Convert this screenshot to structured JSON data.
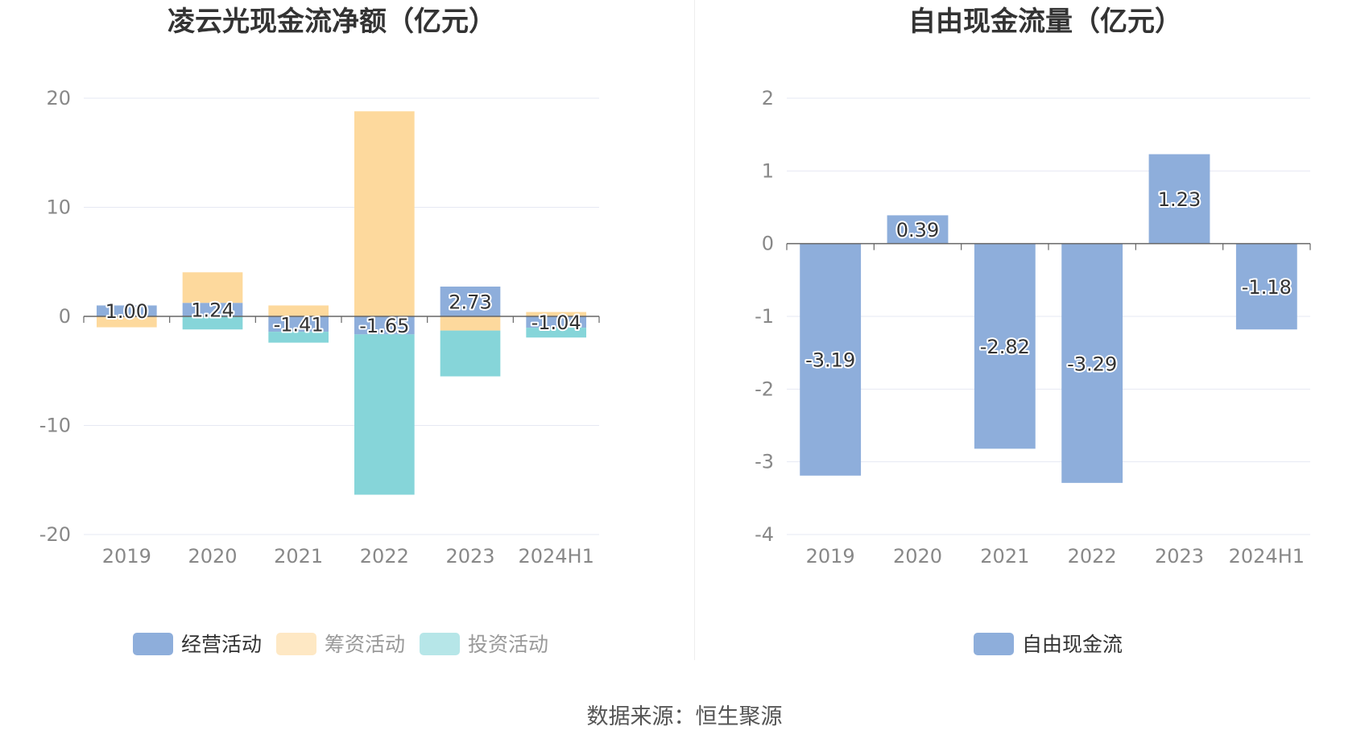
{
  "colors": {
    "operating": "#8eaedb",
    "financing": "#fdd99d",
    "investing": "#86d5d9",
    "free_cash_flow": "#8eaedb",
    "grid": "#e6e8f3",
    "axis_label": "#888888",
    "title": "#333333"
  },
  "source": "数据来源：恒生聚源",
  "chart_data": [
    {
      "type": "bar",
      "stacked": true,
      "title": "凌云光现金流净额（亿元）",
      "categories": [
        "2019",
        "2020",
        "2021",
        "2022",
        "2023",
        "2024H1"
      ],
      "ylim": [
        -20,
        20
      ],
      "yticks": [
        -20,
        -10,
        0,
        10,
        20
      ],
      "grid": true,
      "legend_position": "bottom",
      "series": [
        {
          "name": "经营活动",
          "values": [
            1.0,
            1.24,
            -1.41,
            -1.65,
            2.73,
            -1.04
          ],
          "labels": [
            "1.00",
            "1.24",
            "-1.41",
            "-1.65",
            "2.73",
            "-1.04"
          ]
        },
        {
          "name": "筹资活动",
          "values": [
            -1.0,
            2.8,
            1.0,
            18.8,
            -1.3,
            0.4
          ]
        },
        {
          "name": "投资活动",
          "values": [
            0.0,
            -1.2,
            -1.0,
            -14.7,
            -4.2,
            -0.9
          ]
        }
      ]
    },
    {
      "type": "bar",
      "title": "自由现金流量（亿元）",
      "categories": [
        "2019",
        "2020",
        "2021",
        "2022",
        "2023",
        "2024H1"
      ],
      "ylim": [
        -4,
        2
      ],
      "yticks": [
        -4,
        -3,
        -2,
        -1,
        0,
        1,
        2
      ],
      "grid": true,
      "legend_position": "bottom",
      "series": [
        {
          "name": "自由现金流",
          "values": [
            -3.19,
            0.39,
            -2.82,
            -3.29,
            1.23,
            -1.18
          ],
          "labels": [
            "-3.19",
            "0.39",
            "-2.82",
            "-3.29",
            "1.23",
            "-1.18"
          ]
        }
      ]
    }
  ]
}
